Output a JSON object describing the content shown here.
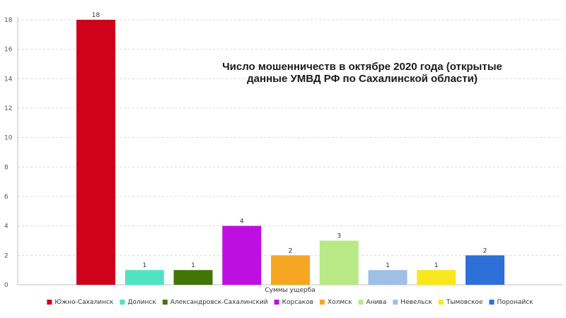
{
  "chart_data": {
    "type": "bar",
    "title_lines": [
      "Число мошенничеств в октябре 2020 года (открытые",
      "данные УМВД РФ по Сахалинской области)"
    ],
    "xlabel": "Суммы ущерба",
    "ylabel": "",
    "ylim": [
      0,
      18
    ],
    "yticks": [
      0,
      2,
      4,
      6,
      8,
      10,
      12,
      14,
      16,
      18
    ],
    "grid": true,
    "legend_position": "bottom",
    "series": [
      {
        "name": "Южно-Сахалинск",
        "value": 18,
        "color": "#d0021b"
      },
      {
        "name": "Долинск",
        "value": 1,
        "color": "#50e3c2"
      },
      {
        "name": "Александровск-Сахалинский",
        "value": 1,
        "color": "#417505"
      },
      {
        "name": "Корсаков",
        "value": 4,
        "color": "#bd10e0"
      },
      {
        "name": "Холмск",
        "value": 2,
        "color": "#f5a623"
      },
      {
        "name": "Анива",
        "value": 3,
        "color": "#b8e986"
      },
      {
        "name": "Невельск",
        "value": 1,
        "color": "#9fbfe6"
      },
      {
        "name": "Тымовское",
        "value": 1,
        "color": "#f8e71c"
      },
      {
        "name": "Поронайск",
        "value": 2,
        "color": "#2f6fd8"
      }
    ]
  }
}
